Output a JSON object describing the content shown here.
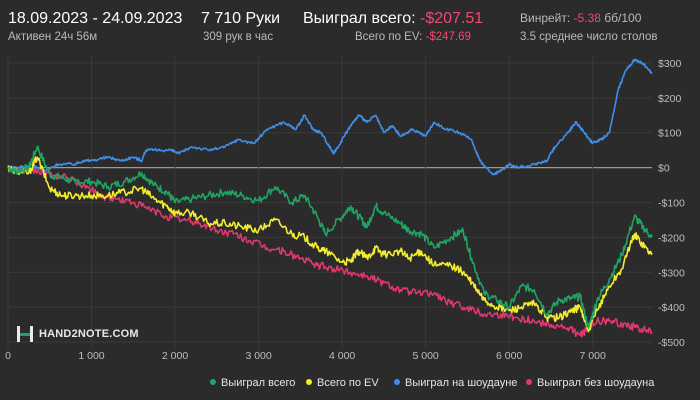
{
  "header": {
    "date_range": "18.09.2023 - 24.09.2023",
    "active_time": "Активен 24ч 56м",
    "hands": "7 710 Руки",
    "hands_per_hour": "309 рук в час",
    "won_total_label": "Выиграл всего:",
    "won_total_value": "-$207.51",
    "all_in_ev_label": "Всего по EV:",
    "all_in_ev_value": "-$247.69",
    "winrate_label": "Винрейт:",
    "winrate_value": "-5.38",
    "winrate_unit": "бб/100",
    "avg_tables": "3.5 среднее число столов"
  },
  "logo": {
    "text": "HAND2NOTE.COM"
  },
  "colors": {
    "background": "#2b2b2b",
    "grid": "#3a3a3a",
    "zero_line": "#9a9a9a",
    "negative": "#f04a72",
    "won_total": "#1fa463",
    "ev": "#f2ec2e",
    "showdown": "#3f8fe8",
    "non_showdown": "#e0376e"
  },
  "chart_data": {
    "type": "line",
    "xlabel": "",
    "ylabel": "",
    "xlim": [
      0,
      7710
    ],
    "ylim": [
      -520,
      320
    ],
    "x_ticks": [
      0,
      1000,
      2000,
      3000,
      4000,
      5000,
      6000,
      7000
    ],
    "x_tick_labels": [
      "0",
      "1 000",
      "2 000",
      "3 000",
      "4 000",
      "5 000",
      "6 000",
      "7 000"
    ],
    "y_ticks": [
      300,
      200,
      100,
      0,
      -100,
      -200,
      -300,
      -400,
      -500
    ],
    "y_tick_labels": [
      "$300",
      "$200",
      "$100",
      "$0",
      "-$100",
      "-$200",
      "-$300",
      "-$400",
      "-$500"
    ],
    "grid": true,
    "legend_position": "bottom",
    "series": [
      {
        "name": "Выиграл всего",
        "color": "#1fa463",
        "points": [
          [
            0,
            0
          ],
          [
            100,
            -10
          ],
          [
            250,
            0
          ],
          [
            350,
            60
          ],
          [
            500,
            -20
          ],
          [
            650,
            -30
          ],
          [
            800,
            -40
          ],
          [
            1000,
            -40
          ],
          [
            1200,
            -55
          ],
          [
            1400,
            -40
          ],
          [
            1600,
            -15
          ],
          [
            1750,
            -50
          ],
          [
            1900,
            -70
          ],
          [
            2000,
            -100
          ],
          [
            2200,
            -90
          ],
          [
            2400,
            -80
          ],
          [
            2600,
            -70
          ],
          [
            2800,
            -80
          ],
          [
            3000,
            -95
          ],
          [
            3200,
            -55
          ],
          [
            3400,
            -100
          ],
          [
            3550,
            -80
          ],
          [
            3700,
            -140
          ],
          [
            3800,
            -190
          ],
          [
            4000,
            -140
          ],
          [
            4100,
            -110
          ],
          [
            4200,
            -140
          ],
          [
            4300,
            -170
          ],
          [
            4400,
            -110
          ],
          [
            4500,
            -130
          ],
          [
            4700,
            -160
          ],
          [
            4800,
            -180
          ],
          [
            4950,
            -190
          ],
          [
            5100,
            -230
          ],
          [
            5300,
            -200
          ],
          [
            5450,
            -180
          ],
          [
            5550,
            -260
          ],
          [
            5700,
            -360
          ],
          [
            5850,
            -380
          ],
          [
            6000,
            -400
          ],
          [
            6150,
            -340
          ],
          [
            6300,
            -350
          ],
          [
            6450,
            -420
          ],
          [
            6600,
            -380
          ],
          [
            6750,
            -375
          ],
          [
            6850,
            -370
          ],
          [
            6950,
            -460
          ],
          [
            7050,
            -380
          ],
          [
            7200,
            -320
          ],
          [
            7350,
            -250
          ],
          [
            7500,
            -140
          ],
          [
            7600,
            -170
          ],
          [
            7710,
            -200
          ]
        ]
      },
      {
        "name": "Всего по EV",
        "color": "#f2ec2e",
        "points": [
          [
            0,
            0
          ],
          [
            100,
            -10
          ],
          [
            250,
            -15
          ],
          [
            350,
            30
          ],
          [
            500,
            -60
          ],
          [
            650,
            -80
          ],
          [
            800,
            -80
          ],
          [
            1000,
            -80
          ],
          [
            1200,
            -80
          ],
          [
            1400,
            -70
          ],
          [
            1600,
            -60
          ],
          [
            1750,
            -90
          ],
          [
            1900,
            -110
          ],
          [
            2000,
            -130
          ],
          [
            2200,
            -130
          ],
          [
            2400,
            -160
          ],
          [
            2600,
            -160
          ],
          [
            2800,
            -170
          ],
          [
            3000,
            -180
          ],
          [
            3200,
            -150
          ],
          [
            3400,
            -190
          ],
          [
            3550,
            -200
          ],
          [
            3700,
            -230
          ],
          [
            3800,
            -240
          ],
          [
            4000,
            -270
          ],
          [
            4100,
            -270
          ],
          [
            4200,
            -240
          ],
          [
            4300,
            -260
          ],
          [
            4400,
            -230
          ],
          [
            4500,
            -250
          ],
          [
            4700,
            -240
          ],
          [
            4800,
            -260
          ],
          [
            4950,
            -240
          ],
          [
            5100,
            -280
          ],
          [
            5300,
            -280
          ],
          [
            5450,
            -300
          ],
          [
            5550,
            -330
          ],
          [
            5700,
            -380
          ],
          [
            5850,
            -400
          ],
          [
            6000,
            -410
          ],
          [
            6150,
            -400
          ],
          [
            6300,
            -390
          ],
          [
            6450,
            -430
          ],
          [
            6600,
            -430
          ],
          [
            6750,
            -410
          ],
          [
            6850,
            -400
          ],
          [
            6950,
            -470
          ],
          [
            7050,
            -410
          ],
          [
            7200,
            -340
          ],
          [
            7350,
            -290
          ],
          [
            7500,
            -190
          ],
          [
            7600,
            -220
          ],
          [
            7710,
            -250
          ]
        ]
      },
      {
        "name": "Выиграл на шоудауне",
        "color": "#3f8fe8",
        "points": [
          [
            0,
            0
          ],
          [
            300,
            5
          ],
          [
            450,
            -10
          ],
          [
            600,
            10
          ],
          [
            800,
            10
          ],
          [
            900,
            20
          ],
          [
            1000,
            20
          ],
          [
            1200,
            30
          ],
          [
            1350,
            20
          ],
          [
            1500,
            30
          ],
          [
            1600,
            20
          ],
          [
            1650,
            50
          ],
          [
            1800,
            50
          ],
          [
            1950,
            50
          ],
          [
            2050,
            40
          ],
          [
            2200,
            60
          ],
          [
            2400,
            50
          ],
          [
            2600,
            60
          ],
          [
            2750,
            80
          ],
          [
            2950,
            70
          ],
          [
            3100,
            110
          ],
          [
            3300,
            130
          ],
          [
            3450,
            110
          ],
          [
            3550,
            150
          ],
          [
            3650,
            110
          ],
          [
            3750,
            100
          ],
          [
            3850,
            60
          ],
          [
            3900,
            40
          ],
          [
            4000,
            80
          ],
          [
            4100,
            120
          ],
          [
            4200,
            150
          ],
          [
            4300,
            130
          ],
          [
            4400,
            150
          ],
          [
            4500,
            100
          ],
          [
            4600,
            120
          ],
          [
            4700,
            90
          ],
          [
            4850,
            110
          ],
          [
            5000,
            90
          ],
          [
            5100,
            130
          ],
          [
            5250,
            110
          ],
          [
            5400,
            100
          ],
          [
            5550,
            80
          ],
          [
            5650,
            20
          ],
          [
            5800,
            -20
          ],
          [
            5900,
            -10
          ],
          [
            6000,
            10
          ],
          [
            6100,
            0
          ],
          [
            6300,
            10
          ],
          [
            6450,
            20
          ],
          [
            6550,
            60
          ],
          [
            6700,
            100
          ],
          [
            6800,
            130
          ],
          [
            6900,
            100
          ],
          [
            7000,
            70
          ],
          [
            7100,
            80
          ],
          [
            7200,
            100
          ],
          [
            7300,
            220
          ],
          [
            7400,
            280
          ],
          [
            7500,
            310
          ],
          [
            7600,
            300
          ],
          [
            7710,
            270
          ]
        ]
      },
      {
        "name": "Выиграл без шоудауна",
        "color": "#e0376e",
        "points": [
          [
            0,
            0
          ],
          [
            200,
            -10
          ],
          [
            350,
            -10
          ],
          [
            500,
            -20
          ],
          [
            700,
            -30
          ],
          [
            900,
            -50
          ],
          [
            1100,
            -80
          ],
          [
            1300,
            -90
          ],
          [
            1500,
            -100
          ],
          [
            1700,
            -120
          ],
          [
            1900,
            -140
          ],
          [
            2100,
            -150
          ],
          [
            2300,
            -160
          ],
          [
            2500,
            -180
          ],
          [
            2700,
            -190
          ],
          [
            2900,
            -210
          ],
          [
            3100,
            -230
          ],
          [
            3300,
            -240
          ],
          [
            3500,
            -260
          ],
          [
            3700,
            -280
          ],
          [
            3900,
            -290
          ],
          [
            4100,
            -300
          ],
          [
            4300,
            -310
          ],
          [
            4500,
            -330
          ],
          [
            4700,
            -350
          ],
          [
            4900,
            -360
          ],
          [
            5100,
            -360
          ],
          [
            5300,
            -390
          ],
          [
            5500,
            -400
          ],
          [
            5700,
            -420
          ],
          [
            5900,
            -420
          ],
          [
            6100,
            -430
          ],
          [
            6300,
            -440
          ],
          [
            6500,
            -450
          ],
          [
            6700,
            -460
          ],
          [
            6850,
            -480
          ],
          [
            6950,
            -460
          ],
          [
            7050,
            -440
          ],
          [
            7200,
            -440
          ],
          [
            7400,
            -450
          ],
          [
            7550,
            -460
          ],
          [
            7710,
            -470
          ]
        ]
      }
    ]
  }
}
